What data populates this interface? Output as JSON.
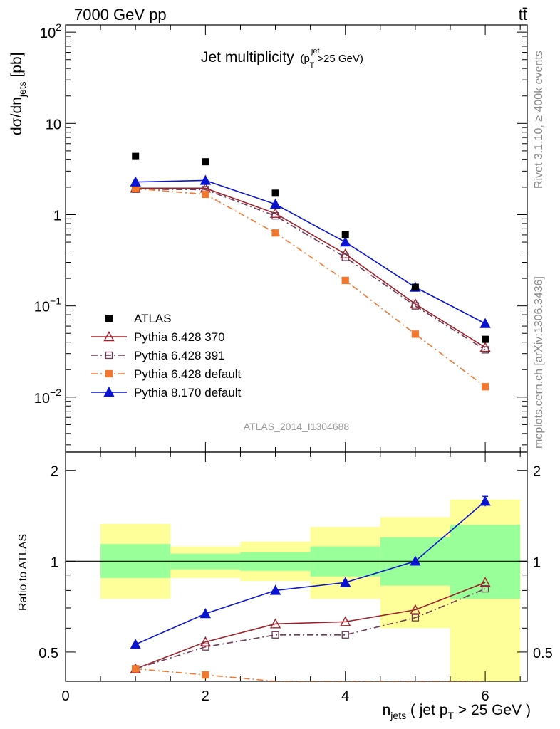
{
  "header": {
    "left": "7000 GeV pp",
    "right": "tt̄"
  },
  "side_text": {
    "top": "Rivet 3.1.10, ≥ 400k events",
    "bottom": "mcplots.cern.ch [arXiv:1306.3436]"
  },
  "chart_data": {
    "title_main": "Jet multiplicity",
    "title_sub": "(p",
    "title_sub_sup": "jet",
    "title_sub_sub": "T",
    "title_sub_tail": ">25 GeV)",
    "ylabel_top": "dσ/dn",
    "ylabel_top_sub": "jets",
    "ylabel_top_tail": " [pb]",
    "ylabel_bottom": "Ratio to ATLAS",
    "xlabel": "n",
    "xlabel_sub": "jets",
    "xlabel_mid": " ( jet p",
    "xlabel_mid_sub": "T",
    "xlabel_tail": " > 25 GeV )",
    "watermark": "ATLAS_2014_I1304688",
    "xlim": [
      0,
      6.6
    ],
    "ylim_top": [
      0.0025,
      120
    ],
    "ylim_top_log": true,
    "ylim_bottom": [
      0.4,
      2.3
    ],
    "ylim_bottom_log": true,
    "x_ticks": [
      "0",
      "2",
      "4",
      "6"
    ],
    "y_ticks_top": [
      {
        "base": "10",
        "exp": "−2",
        "v": 0.01
      },
      {
        "base": "10",
        "exp": "−1",
        "v": 0.1
      },
      {
        "base": "1",
        "exp": "",
        "v": 1
      },
      {
        "base": "10",
        "exp": "",
        "v": 10
      },
      {
        "base": "10",
        "exp": "2",
        "v": 100
      }
    ],
    "y_ticks_bottom": [
      "0.5",
      "1",
      "2"
    ],
    "x": [
      1,
      2,
      3,
      4,
      5,
      6
    ],
    "bins": [
      [
        0.5,
        1.5
      ],
      [
        1.5,
        2.5
      ],
      [
        2.5,
        3.5
      ],
      [
        3.5,
        4.5
      ],
      [
        4.5,
        5.5
      ],
      [
        5.5,
        6.5
      ]
    ],
    "data": {
      "name": "ATLAS",
      "values": [
        4.35,
        3.8,
        1.72,
        0.6,
        0.16,
        0.043
      ]
    },
    "band_inner": [
      [
        0.88,
        1.14
      ],
      [
        0.94,
        1.06
      ],
      [
        0.93,
        1.07
      ],
      [
        0.89,
        1.12
      ],
      [
        0.83,
        1.2
      ],
      [
        0.75,
        1.32
      ]
    ],
    "band_outer": [
      [
        0.75,
        1.33
      ],
      [
        0.88,
        1.12
      ],
      [
        0.86,
        1.16
      ],
      [
        0.75,
        1.3
      ],
      [
        0.6,
        1.4
      ],
      [
        0.38,
        1.6
      ]
    ],
    "series": [
      {
        "name": "Pythia 6.428 370",
        "color": "#a0202a",
        "marker": "open-triangle",
        "dash": "",
        "values": [
          1.95,
          1.95,
          1.03,
          0.37,
          0.105,
          0.035
        ],
        "ratio": [
          0.44,
          0.54,
          0.62,
          0.63,
          0.69,
          0.85
        ]
      },
      {
        "name": "Pythia 6.428 391",
        "color": "#6e3a56",
        "marker": "open-square",
        "dash": "9,4,2,4",
        "values": [
          1.9,
          1.88,
          0.97,
          0.34,
          0.1,
          0.033
        ],
        "ratio": [
          0.44,
          0.52,
          0.57,
          0.57,
          0.65,
          0.81
        ]
      },
      {
        "name": "Pythia 6.428 default",
        "color": "#f07830",
        "marker": "square",
        "dash": "9,4,2,4",
        "values": [
          1.93,
          1.67,
          0.63,
          0.19,
          0.049,
          0.013
        ],
        "ratio": [
          0.44,
          0.42,
          0.37,
          0.32,
          0.3,
          0.3
        ]
      },
      {
        "name": "Pythia 8.170 default",
        "color": "#0a14d0",
        "marker": "triangle",
        "dash": "",
        "values": [
          2.28,
          2.37,
          1.3,
          0.5,
          0.16,
          0.064
        ],
        "ratio": [
          0.53,
          0.67,
          0.8,
          0.85,
          1.0,
          1.58
        ]
      }
    ]
  }
}
